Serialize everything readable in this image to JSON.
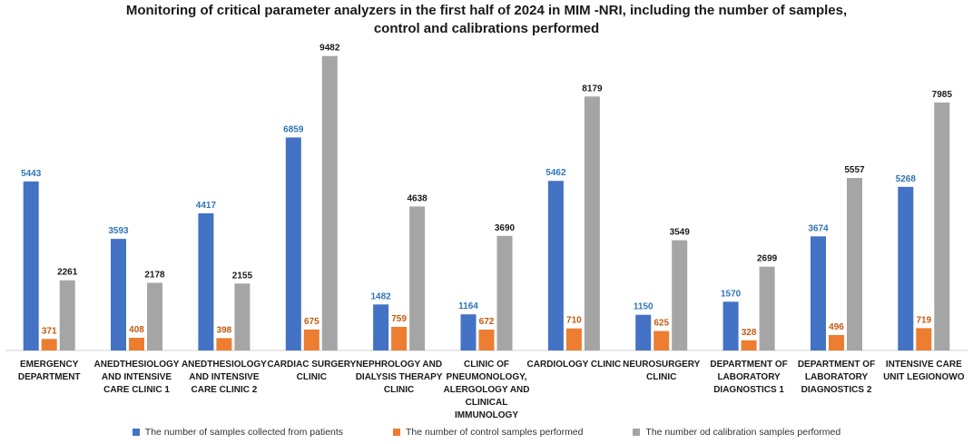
{
  "chart_data": {
    "type": "bar",
    "title": "Monitoring of critical parameter analyzers in the first half of 2024  in MIM -NRI, including  the number of samples, control and calibrations performed",
    "title_lines": [
      "Monitoring of critical parameter analyzers in the first half of 2024  in MIM -NRI, including  the number of samples,",
      "control and calibrations performed"
    ],
    "categories": [
      [
        "EMERGENCY",
        "DEPARTMENT"
      ],
      [
        "ANEDTHESIOLOGY",
        "AND INTENSIVE",
        "CARE CLINIC 1"
      ],
      [
        "ANEDTHESIOLOGY",
        "AND INTENSIVE",
        "CARE CLINIC 2"
      ],
      [
        "CARDIAC SURGERY",
        "CLINIC"
      ],
      [
        "NEPHROLOGY AND",
        "DIALYSIS THERAPY",
        "CLINIC"
      ],
      [
        "CLINIC OF",
        "PNEUMONOLOGY,",
        "ALERGOLOGY AND",
        "CLINICAL",
        "IMMUNOLOGY"
      ],
      [
        "CARDIOLOGY CLINIC"
      ],
      [
        "NEUROSURGERY",
        "CLINIC"
      ],
      [
        "DEPARTMENT OF",
        "LABORATORY",
        "DIAGNOSTICS 1"
      ],
      [
        "DEPARTMENT OF",
        "LABORATORY",
        "DIAGNOSTICS 2"
      ],
      [
        "INTENSIVE CARE",
        "UNIT LEGIONOWO"
      ]
    ],
    "series": [
      {
        "name": "The number of samples collected from patients",
        "color": "#4472C4",
        "label_color": "#2E75B6",
        "values": [
          5443,
          3593,
          4417,
          6859,
          1482,
          1164,
          5462,
          1150,
          1570,
          3674,
          5268
        ]
      },
      {
        "name": "The number of control samples performed",
        "color": "#ED7D31",
        "label_color": "#C55A11",
        "values": [
          371,
          408,
          398,
          675,
          759,
          672,
          710,
          625,
          328,
          496,
          719
        ]
      },
      {
        "name": "The number od calibration samples performed",
        "color": "#A5A5A5",
        "label_color": "#1a1a1a",
        "values": [
          2261,
          2178,
          2155,
          9482,
          4638,
          3690,
          8179,
          3549,
          2699,
          5557,
          7985
        ]
      }
    ],
    "ylim": [
      0,
      10000
    ],
    "grid": false,
    "legend": "bottom"
  }
}
